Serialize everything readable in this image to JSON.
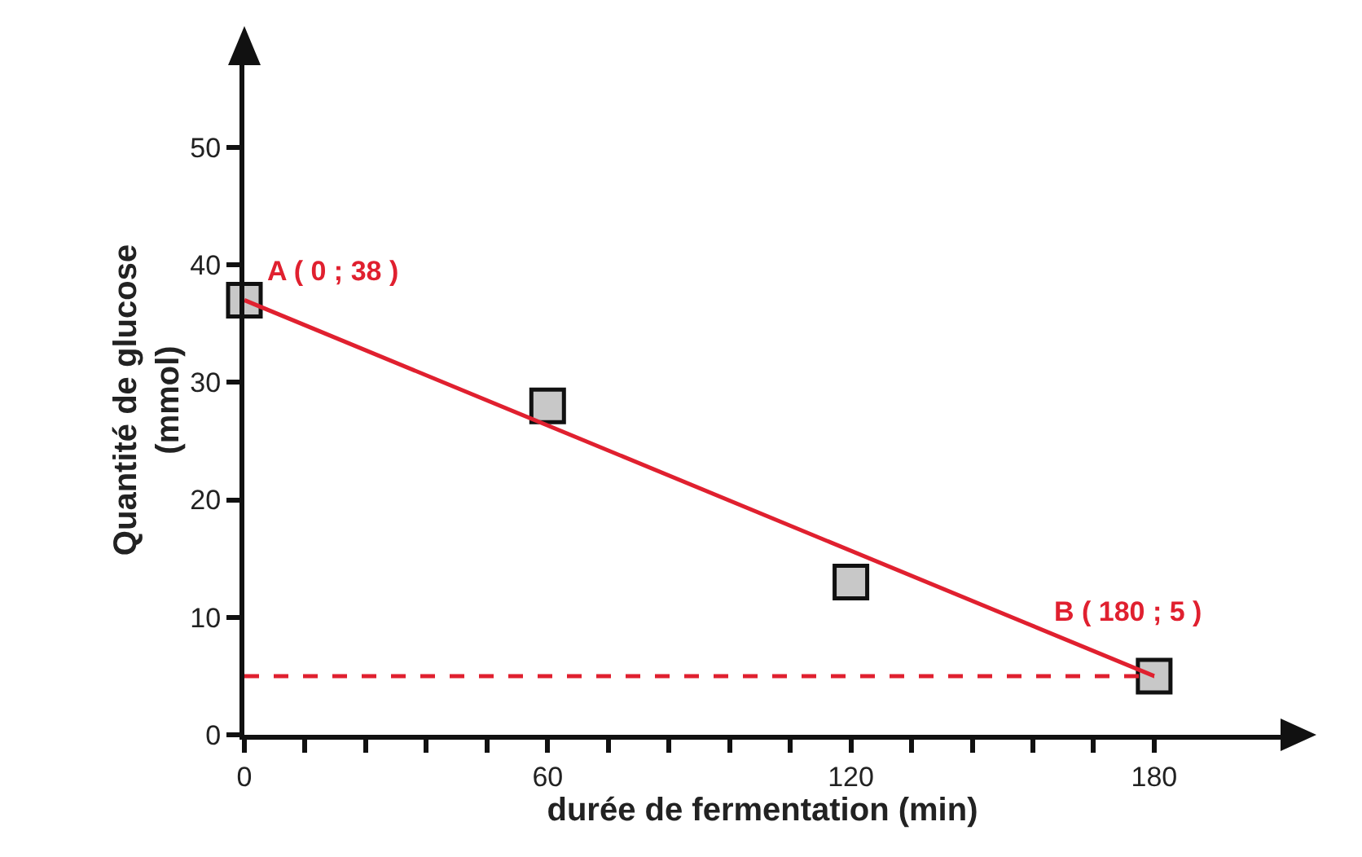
{
  "chart_data": {
    "type": "scatter",
    "xlabel": "durée de fermentation (min)",
    "ylabel": "Quantité de glucose\n(mmol)",
    "x": [
      0,
      60,
      120,
      180
    ],
    "series": [
      {
        "color": "#c8c8c8",
        "values": [
          37,
          28,
          13,
          5
        ],
        "marker": "square"
      },
      {
        "type": "line",
        "color": "#e0202f",
        "x": [
          0,
          180
        ],
        "values": [
          37,
          5
        ],
        "marker": "none",
        "line_style": "solid"
      }
    ],
    "annotations": [
      {
        "text": "A ( 0 ; 38 )",
        "x": 0,
        "y": 37
      },
      {
        "text": "B ( 180 ; 5 )",
        "x": 180,
        "y": 5
      }
    ],
    "ref_lines": [
      {
        "axis": "y",
        "value": 5,
        "color": "#e0202f",
        "line_style": "dashed"
      }
    ],
    "xlim": [
      0,
      205
    ],
    "ylim": [
      0,
      57
    ],
    "xticks": [
      0,
      {
        "value": 12,
        "label": null
      },
      {
        "value": 24,
        "label": null
      },
      {
        "value": 36,
        "label": null
      },
      {
        "value": 48,
        "label": null
      },
      60,
      {
        "value": 72,
        "label": null
      },
      {
        "value": 84,
        "label": null
      },
      {
        "value": 96,
        "label": null
      },
      {
        "value": 108,
        "label": null
      },
      120,
      {
        "value": 132,
        "label": null
      },
      {
        "value": 144,
        "label": null
      },
      {
        "value": 156,
        "label": null
      },
      {
        "value": 168,
        "label": null
      },
      180
    ],
    "yticks": [
      0,
      10,
      20,
      30,
      40,
      50
    ],
    "grid": false,
    "legend": false
  }
}
